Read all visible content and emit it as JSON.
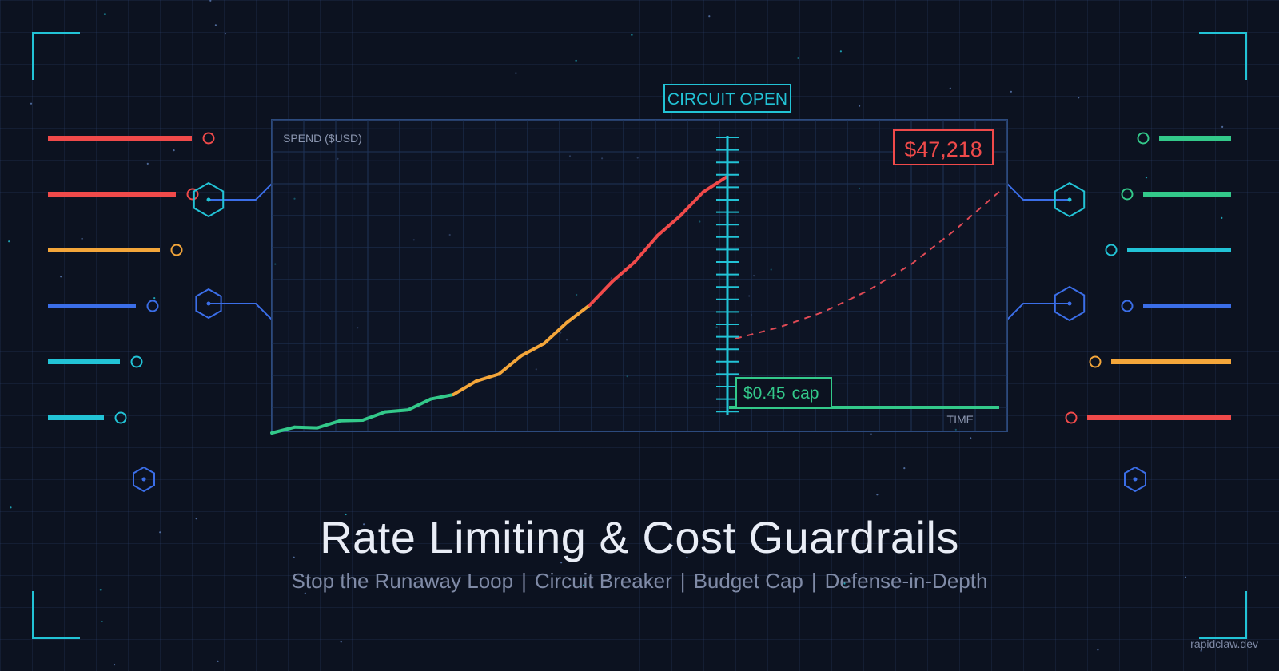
{
  "header": {
    "title": "Rate Limiting & Cost Guardrails",
    "subtitle_parts": [
      "Stop the Runaway Loop",
      "Circuit Breaker",
      "Budget Cap",
      "Defense-in-Depth"
    ],
    "separator": "|",
    "watermark": "rapidclaw.dev"
  },
  "chart_data": {
    "type": "line",
    "ylabel": "SPEND ($USD)",
    "xlabel": "TIME",
    "status_label": "CIRCUIT OPEN",
    "peak_label": "$47,218",
    "cap_label": "$0.45",
    "cap_suffix": "cap",
    "grid": true,
    "series": [
      {
        "role": "runaway spend (actual)",
        "style": "solid",
        "x": [
          0,
          0.05,
          0.1,
          0.15,
          0.2,
          0.25,
          0.3,
          0.35,
          0.4,
          0.45,
          0.5,
          0.55,
          0.6,
          0.65,
          0.7,
          0.75,
          0.8,
          0.85,
          0.9,
          0.95,
          1.0
        ],
        "y": [
          0.0,
          0.01,
          0.02,
          0.035,
          0.05,
          0.07,
          0.09,
          0.12,
          0.15,
          0.19,
          0.23,
          0.29,
          0.35,
          0.42,
          0.5,
          0.58,
          0.67,
          0.76,
          0.85,
          0.93,
          1.0
        ],
        "colors": [
          "#33c98a",
          "#f4a63a",
          "#f04a4a"
        ]
      },
      {
        "role": "projected spend (no breaker)",
        "style": "dashed",
        "color": "#e04a55",
        "x": [
          1.0,
          1.1,
          1.2,
          1.3,
          1.4,
          1.5,
          1.6
        ],
        "y": [
          0.13,
          0.19,
          0.27,
          0.38,
          0.52,
          0.7,
          0.9
        ]
      },
      {
        "role": "budget cap",
        "style": "solid",
        "color": "#33c98a",
        "x": [
          1.0,
          1.6
        ],
        "y": [
          0.0,
          0.0
        ]
      }
    ]
  },
  "colors": {
    "background": "#0c1220",
    "cyan": "#22c3d6",
    "red": "#f04a4a",
    "orange": "#f4a63a",
    "blue": "#3b6ee8",
    "green": "#33c98a"
  }
}
